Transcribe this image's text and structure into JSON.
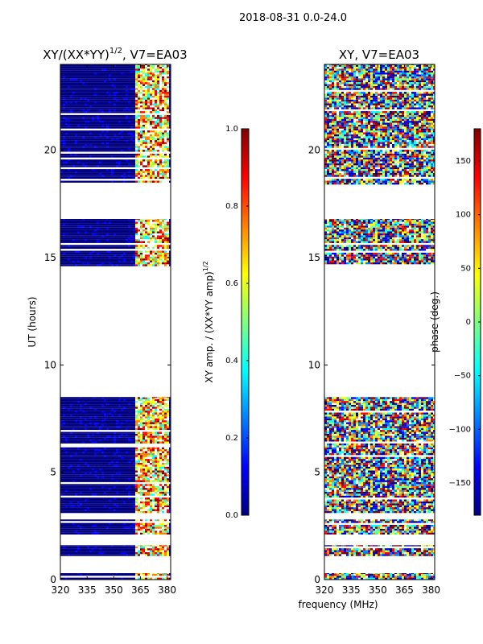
{
  "figure": {
    "suptitle": "2018-08-31 0.0-24.0",
    "xlabel_shared": "frequency (MHz)"
  },
  "colors": {
    "background": "#ffffff",
    "axis": "#000000",
    "jet": [
      "#000080",
      "#0000ff",
      "#0080ff",
      "#00ffff",
      "#80ff80",
      "#ffff00",
      "#ff8000",
      "#ff0000",
      "#800000"
    ]
  },
  "chart_data": [
    {
      "type": "heatmap",
      "title_main": "XY/(XX*YY)",
      "title_sup": "1/2",
      "title_tail": ", V7=EA03",
      "xlabel": "",
      "ylabel": "UT (hours)",
      "xlim": [
        320,
        382
      ],
      "ylim": [
        0,
        24
      ],
      "xticks": [
        320,
        335,
        350,
        365,
        380
      ],
      "yticks": [
        0,
        5,
        10,
        15,
        20
      ],
      "xtick_labels": [
        "320",
        "335",
        "350",
        "365",
        "380"
      ],
      "ytick_labels": [
        "0",
        "5",
        "10",
        "15",
        "20"
      ],
      "data_time_ranges_hours": [
        [
          0,
          0.3
        ],
        [
          1.1,
          1.6
        ],
        [
          2.1,
          2.8
        ],
        [
          3.1,
          8.5
        ],
        [
          14.6,
          16.8
        ],
        [
          18.4,
          24.0
        ]
      ],
      "bright_band_mhz": [
        362,
        380
      ],
      "colorbar": {
        "label_main": "XY amp. / (XX*YY amp)",
        "label_sup": "1/2",
        "range": [
          0.0,
          1.0
        ],
        "ticks": [
          "0.0",
          "0.2",
          "0.4",
          "0.6",
          "0.8",
          "1.0"
        ]
      }
    },
    {
      "type": "heatmap",
      "title": "XY, V7=EA03",
      "xlabel": "frequency (MHz)",
      "ylabel": "",
      "xlim": [
        320,
        382
      ],
      "ylim": [
        0,
        24
      ],
      "xticks": [
        320,
        335,
        350,
        365,
        380
      ],
      "yticks": [
        0,
        5,
        10,
        15,
        20
      ],
      "xtick_labels": [
        "320",
        "335",
        "350",
        "365",
        "380"
      ],
      "ytick_labels": [
        "0",
        "5",
        "10",
        "15",
        "20"
      ],
      "data_time_ranges_hours": [
        [
          0,
          0.3
        ],
        [
          1.1,
          1.6
        ],
        [
          2.1,
          2.8
        ],
        [
          3.1,
          8.5
        ],
        [
          14.6,
          16.8
        ],
        [
          18.4,
          24.0
        ]
      ],
      "colorbar": {
        "label": "phase (deg.)",
        "range": [
          -180,
          180
        ],
        "ticks": [
          "−150",
          "−100",
          "−50",
          "0",
          "50",
          "100",
          "150"
        ]
      }
    }
  ]
}
